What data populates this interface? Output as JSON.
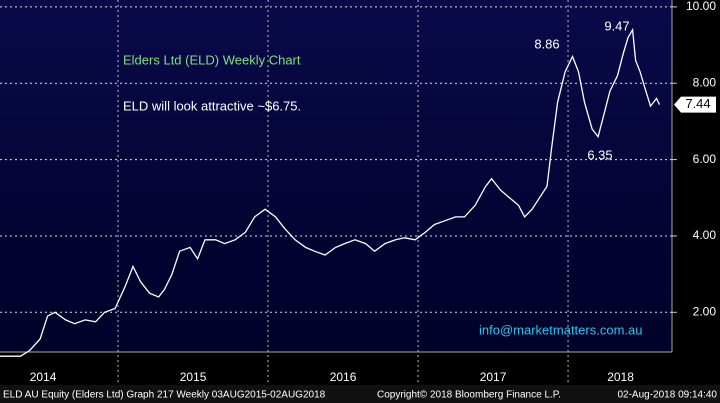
{
  "chart_data": {
    "type": "line",
    "annotations": [
      "Elders Ltd (ELD) Weekly Chart",
      "ELD will look attractive ~$6.75.",
      "8.86",
      "9.47",
      "6.35",
      "info@marketmatters.com.au"
    ],
    "footer": [
      "ELD AU Equity (Elders Ltd) Graph 217  Weekly 03AUG2015-02AUG2018",
      "Copyright© 2018 Bloomberg Finance L.P.",
      "02-Aug-2018 09:14:40"
    ],
    "last_price": {
      "value": 7.44,
      "label": "7.44"
    },
    "xlim": [
      2014.213,
      2018.693
    ],
    "xticks": [
      {
        "value": 2014.5,
        "label": "2014"
      },
      {
        "value": 2015.5,
        "label": "2015"
      },
      {
        "value": 2016.5,
        "label": "2016"
      },
      {
        "value": 2017.5,
        "label": "2017"
      },
      {
        "value": 2018.35,
        "label": "2018"
      }
    ],
    "ylim": [
      0.96,
      10.18
    ],
    "yticks": [
      {
        "value": 2,
        "label": "2.00"
      },
      {
        "value": 4,
        "label": "4.00"
      },
      {
        "value": 6,
        "label": "6.00"
      },
      {
        "value": 8,
        "label": "8.00"
      },
      {
        "value": 10,
        "label": "10.00"
      }
    ],
    "grid": true,
    "x": [
      2014.21,
      2014.28,
      2014.35,
      2014.41,
      2014.48,
      2014.53,
      2014.58,
      2014.65,
      2014.71,
      2014.78,
      2014.85,
      2014.91,
      2014.98,
      2015.05,
      2015.1,
      2015.15,
      2015.21,
      2015.27,
      2015.31,
      2015.36,
      2015.41,
      2015.48,
      2015.53,
      2015.58,
      2015.65,
      2015.71,
      2015.78,
      2015.85,
      2015.91,
      2015.98,
      2016.05,
      2016.11,
      2016.18,
      2016.25,
      2016.31,
      2016.38,
      2016.45,
      2016.51,
      2016.58,
      2016.65,
      2016.71,
      2016.78,
      2016.85,
      2016.91,
      2016.98,
      2017.05,
      2017.11,
      2017.18,
      2017.25,
      2017.31,
      2017.38,
      2017.45,
      2017.49,
      2017.55,
      2017.61,
      2017.67,
      2017.71,
      2017.76,
      2017.81,
      2017.86,
      2017.89,
      2017.93,
      2017.98,
      2018.03,
      2018.07,
      2018.11,
      2018.16,
      2018.2,
      2018.24,
      2018.28,
      2018.33,
      2018.37,
      2018.4,
      2018.43,
      2018.45,
      2018.48,
      2018.51,
      2018.55,
      2018.59,
      2018.61
    ],
    "series": [
      {
        "color": "#ffffff",
        "values": [
          0.85,
          0.85,
          0.85,
          1.0,
          1.3,
          1.9,
          2.0,
          1.8,
          1.7,
          1.8,
          1.75,
          2.0,
          2.1,
          2.7,
          3.2,
          2.8,
          2.5,
          2.4,
          2.6,
          3.0,
          3.6,
          3.7,
          3.4,
          3.9,
          3.9,
          3.8,
          3.9,
          4.1,
          4.5,
          4.7,
          4.5,
          4.2,
          3.9,
          3.7,
          3.6,
          3.5,
          3.7,
          3.8,
          3.9,
          3.8,
          3.6,
          3.8,
          3.9,
          3.95,
          3.9,
          4.1,
          4.3,
          4.4,
          4.5,
          4.5,
          4.8,
          5.3,
          5.5,
          5.2,
          5.0,
          4.8,
          4.5,
          4.7,
          5.0,
          5.3,
          6.3,
          7.5,
          8.3,
          8.7,
          8.3,
          7.5,
          6.8,
          6.6,
          7.2,
          7.8,
          8.2,
          8.8,
          9.2,
          9.4,
          8.6,
          8.3,
          7.9,
          7.4,
          7.6,
          7.44
        ]
      }
    ]
  }
}
